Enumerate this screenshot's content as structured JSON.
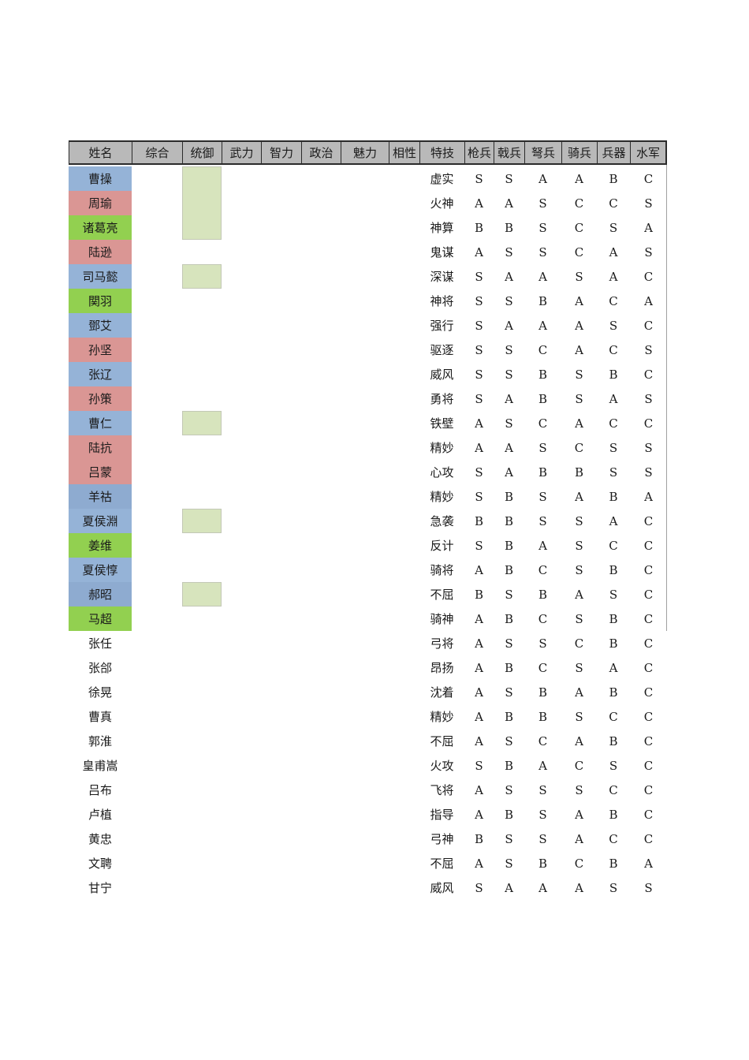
{
  "colors": {
    "wei": "#95b3d7",
    "wu": "#da9694",
    "shu": "#92d050",
    "jin": "#8eabd0",
    "tong_fill": "#d7e4bd",
    "header_fill": "#b9b9b9"
  },
  "headers": [
    "姓名",
    "综合",
    "统御",
    "武力",
    "智力",
    "政治",
    "魅力",
    "相性",
    "特技",
    "枪兵",
    "戟兵",
    "弩兵",
    "骑兵",
    "兵器",
    "水军"
  ],
  "rows": [
    {
      "name": "曹操",
      "faction": "wei",
      "skill": "虚实",
      "apt": [
        "S",
        "S",
        "A",
        "A",
        "B",
        "C"
      ]
    },
    {
      "name": "周瑜",
      "faction": "wu",
      "skill": "火神",
      "apt": [
        "A",
        "A",
        "S",
        "C",
        "C",
        "S"
      ]
    },
    {
      "name": "诸葛亮",
      "faction": "shu",
      "skill": "神算",
      "apt": [
        "B",
        "B",
        "S",
        "C",
        "S",
        "A"
      ]
    },
    {
      "name": "陆逊",
      "faction": "wu",
      "skill": "鬼谋",
      "apt": [
        "A",
        "S",
        "S",
        "C",
        "A",
        "S"
      ]
    },
    {
      "name": "司马懿",
      "faction": "wei",
      "skill": "深谋",
      "apt": [
        "S",
        "A",
        "A",
        "S",
        "A",
        "C"
      ]
    },
    {
      "name": "関羽",
      "faction": "shu",
      "skill": "神将",
      "apt": [
        "S",
        "S",
        "B",
        "A",
        "C",
        "A"
      ]
    },
    {
      "name": "鄧艾",
      "faction": "wei",
      "skill": "强行",
      "apt": [
        "S",
        "A",
        "A",
        "A",
        "S",
        "C"
      ]
    },
    {
      "name": "孙坚",
      "faction": "wu",
      "skill": "驱逐",
      "apt": [
        "S",
        "S",
        "C",
        "A",
        "C",
        "S"
      ]
    },
    {
      "name": "张辽",
      "faction": "wei",
      "skill": "威风",
      "apt": [
        "S",
        "S",
        "B",
        "S",
        "B",
        "C"
      ]
    },
    {
      "name": "孙策",
      "faction": "wu",
      "skill": "勇将",
      "apt": [
        "S",
        "A",
        "B",
        "S",
        "A",
        "S"
      ]
    },
    {
      "name": "曹仁",
      "faction": "wei",
      "skill": "铁壁",
      "apt": [
        "A",
        "S",
        "C",
        "A",
        "C",
        "C"
      ]
    },
    {
      "name": "陆抗",
      "faction": "wu",
      "skill": "精妙",
      "apt": [
        "A",
        "A",
        "S",
        "C",
        "S",
        "S"
      ]
    },
    {
      "name": "吕蒙",
      "faction": "wu",
      "skill": "心攻",
      "apt": [
        "S",
        "A",
        "B",
        "B",
        "S",
        "S"
      ]
    },
    {
      "name": "羊祜",
      "faction": "jin",
      "skill": "精妙",
      "apt": [
        "S",
        "B",
        "S",
        "A",
        "B",
        "A"
      ]
    },
    {
      "name": "夏侯淵",
      "faction": "wei",
      "skill": "急袭",
      "apt": [
        "B",
        "B",
        "S",
        "S",
        "A",
        "C"
      ]
    },
    {
      "name": "姜维",
      "faction": "shu",
      "skill": "反计",
      "apt": [
        "S",
        "B",
        "A",
        "S",
        "C",
        "C"
      ]
    },
    {
      "name": "夏侯惇",
      "faction": "wei",
      "skill": "骑将",
      "apt": [
        "A",
        "B",
        "C",
        "S",
        "B",
        "C"
      ]
    },
    {
      "name": "郝昭",
      "faction": "jin",
      "skill": "不屈",
      "apt": [
        "B",
        "S",
        "B",
        "A",
        "S",
        "C"
      ]
    },
    {
      "name": "马超",
      "faction": "shu",
      "skill": "骑神",
      "apt": [
        "A",
        "B",
        "C",
        "S",
        "B",
        "C"
      ]
    },
    {
      "name": "张任",
      "faction": "",
      "skill": "弓将",
      "apt": [
        "A",
        "S",
        "S",
        "C",
        "B",
        "C"
      ]
    },
    {
      "name": "张郃",
      "faction": "",
      "skill": "昂扬",
      "apt": [
        "A",
        "B",
        "C",
        "S",
        "A",
        "C"
      ]
    },
    {
      "name": "徐晃",
      "faction": "",
      "skill": "沈着",
      "apt": [
        "A",
        "S",
        "B",
        "A",
        "B",
        "C"
      ]
    },
    {
      "name": "曹真",
      "faction": "",
      "skill": "精妙",
      "apt": [
        "A",
        "B",
        "B",
        "S",
        "C",
        "C"
      ]
    },
    {
      "name": "郭淮",
      "faction": "",
      "skill": "不屈",
      "apt": [
        "A",
        "S",
        "C",
        "A",
        "B",
        "C"
      ]
    },
    {
      "name": "皇甫嵩",
      "faction": "",
      "skill": "火攻",
      "apt": [
        "S",
        "B",
        "A",
        "C",
        "S",
        "C"
      ]
    },
    {
      "name": "吕布",
      "faction": "",
      "skill": "飞将",
      "apt": [
        "A",
        "S",
        "S",
        "S",
        "C",
        "C"
      ]
    },
    {
      "name": "卢植",
      "faction": "",
      "skill": "指导",
      "apt": [
        "A",
        "B",
        "S",
        "A",
        "B",
        "C"
      ]
    },
    {
      "name": "黄忠",
      "faction": "",
      "skill": "弓神",
      "apt": [
        "B",
        "S",
        "S",
        "A",
        "C",
        "C"
      ]
    },
    {
      "name": "文聘",
      "faction": "",
      "skill": "不屈",
      "apt": [
        "A",
        "S",
        "B",
        "C",
        "B",
        "A"
      ]
    },
    {
      "name": "甘宁",
      "faction": "",
      "skill": "威风",
      "apt": [
        "S",
        "A",
        "A",
        "A",
        "S",
        "S"
      ]
    }
  ]
}
